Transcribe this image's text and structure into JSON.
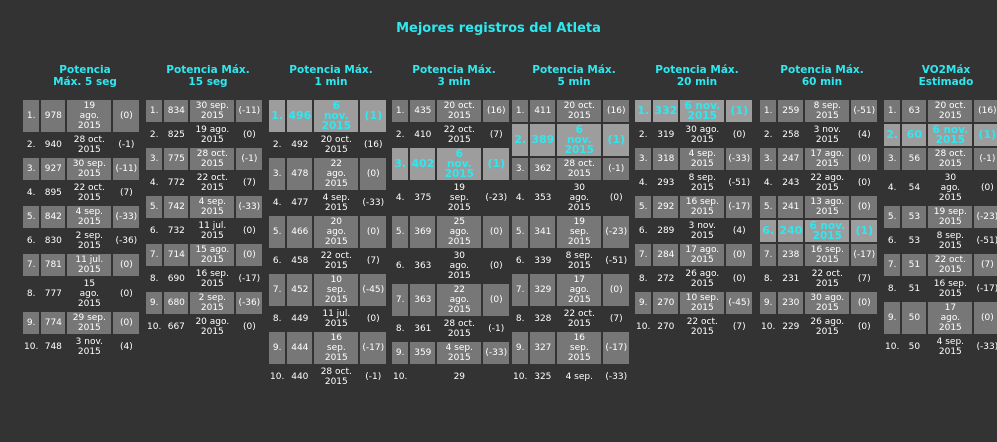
{
  "page_title": "Mejores registros del Atleta",
  "columns": [
    {
      "title": [
        "Potencia",
        "Máx. 5 seg"
      ],
      "rows": [
        {
          "rank": "1.",
          "value": "978",
          "date": [
            "19",
            "ago.",
            "2015"
          ],
          "diff": "(0)",
          "style": "shade"
        },
        {
          "rank": "2.",
          "value": "940",
          "date": [
            "28 oct.",
            "2015"
          ],
          "diff": "(-1)",
          "style": ""
        },
        {
          "rank": "3.",
          "value": "927",
          "date": [
            "30 sep.",
            "2015"
          ],
          "diff": "(-11)",
          "style": "shade"
        },
        {
          "rank": "4.",
          "value": "895",
          "date": [
            "22 oct.",
            "2015"
          ],
          "diff": "(7)",
          "style": ""
        },
        {
          "rank": "5.",
          "value": "842",
          "date": [
            "4 sep.",
            "2015"
          ],
          "diff": "(-33)",
          "style": "shade"
        },
        {
          "rank": "6.",
          "value": "830",
          "date": [
            "2 sep.",
            "2015"
          ],
          "diff": "(-36)",
          "style": ""
        },
        {
          "rank": "7.",
          "value": "781",
          "date": [
            "11 jul.",
            "2015"
          ],
          "diff": "(0)",
          "style": "shade"
        },
        {
          "rank": "8.",
          "value": "777",
          "date": [
            "15",
            "ago.",
            "2015"
          ],
          "diff": "(0)",
          "style": ""
        },
        {
          "rank": "9.",
          "value": "774",
          "date": [
            "29 sep.",
            "2015"
          ],
          "diff": "(0)",
          "style": "shade"
        },
        {
          "rank": "10.",
          "value": "748",
          "date": [
            "3 nov.",
            "2015"
          ],
          "diff": "(4)",
          "style": ""
        }
      ]
    },
    {
      "title": [
        "Potencia Máx.",
        "15 seg"
      ],
      "rows": [
        {
          "rank": "1.",
          "value": "834",
          "date": [
            "30 sep.",
            "2015"
          ],
          "diff": "(-11)",
          "style": "shade"
        },
        {
          "rank": "2.",
          "value": "825",
          "date": [
            "19 ago.",
            "2015"
          ],
          "diff": "(0)",
          "style": ""
        },
        {
          "rank": "3.",
          "value": "775",
          "date": [
            "28 oct.",
            "2015"
          ],
          "diff": "(-1)",
          "style": "shade"
        },
        {
          "rank": "4.",
          "value": "772",
          "date": [
            "22 oct.",
            "2015"
          ],
          "diff": "(7)",
          "style": ""
        },
        {
          "rank": "5.",
          "value": "742",
          "date": [
            "4 sep.",
            "2015"
          ],
          "diff": "(-33)",
          "style": "shade"
        },
        {
          "rank": "6.",
          "value": "732",
          "date": [
            "11 jul.",
            "2015"
          ],
          "diff": "(0)",
          "style": ""
        },
        {
          "rank": "7.",
          "value": "714",
          "date": [
            "15 ago.",
            "2015"
          ],
          "diff": "(0)",
          "style": "shade"
        },
        {
          "rank": "8.",
          "value": "690",
          "date": [
            "16 sep.",
            "2015"
          ],
          "diff": "(-17)",
          "style": ""
        },
        {
          "rank": "9.",
          "value": "680",
          "date": [
            "2 sep.",
            "2015"
          ],
          "diff": "(-36)",
          "style": "shade"
        },
        {
          "rank": "10.",
          "value": "667",
          "date": [
            "20 ago.",
            "2015"
          ],
          "diff": "(0)",
          "style": ""
        }
      ]
    },
    {
      "title": [
        "Potencia Máx.",
        "1 min"
      ],
      "rows": [
        {
          "rank": "1.",
          "value": "496",
          "date": [
            "6",
            "nov.",
            "2015"
          ],
          "diff": "(1)",
          "style": "hl"
        },
        {
          "rank": "2.",
          "value": "492",
          "date": [
            "20 oct.",
            "2015"
          ],
          "diff": "(16)",
          "style": ""
        },
        {
          "rank": "3.",
          "value": "478",
          "date": [
            "22",
            "ago.",
            "2015"
          ],
          "diff": "(0)",
          "style": "shade"
        },
        {
          "rank": "4.",
          "value": "477",
          "date": [
            "4 sep.",
            "2015"
          ],
          "diff": "(-33)",
          "style": ""
        },
        {
          "rank": "5.",
          "value": "466",
          "date": [
            "20",
            "ago.",
            "2015"
          ],
          "diff": "(0)",
          "style": "shade"
        },
        {
          "rank": "6.",
          "value": "458",
          "date": [
            "22 oct.",
            "2015"
          ],
          "diff": "(7)",
          "style": ""
        },
        {
          "rank": "7.",
          "value": "452",
          "date": [
            "10",
            "sep.",
            "2015"
          ],
          "diff": "(-45)",
          "style": "shade"
        },
        {
          "rank": "8.",
          "value": "449",
          "date": [
            "11 jul.",
            "2015"
          ],
          "diff": "(0)",
          "style": ""
        },
        {
          "rank": "9.",
          "value": "444",
          "date": [
            "16",
            "sep.",
            "2015"
          ],
          "diff": "(-17)",
          "style": "shade"
        },
        {
          "rank": "10.",
          "value": "440",
          "date": [
            "28 oct.",
            "2015"
          ],
          "diff": "(-1)",
          "style": ""
        }
      ]
    },
    {
      "title": [
        "Potencia Máx.",
        "3 min"
      ],
      "rows": [
        {
          "rank": "1.",
          "value": "435",
          "date": [
            "20 oct.",
            "2015"
          ],
          "diff": "(16)",
          "style": "shade"
        },
        {
          "rank": "2.",
          "value": "410",
          "date": [
            "22 oct.",
            "2015"
          ],
          "diff": "(7)",
          "style": ""
        },
        {
          "rank": "3.",
          "value": "402",
          "date": [
            "6",
            "nov.",
            "2015"
          ],
          "diff": "(1)",
          "style": "hl"
        },
        {
          "rank": "4.",
          "value": "375",
          "date": [
            "19",
            "sep.",
            "2015"
          ],
          "diff": "(-23)",
          "style": ""
        },
        {
          "rank": "5.",
          "value": "369",
          "date": [
            "25",
            "ago.",
            "2015"
          ],
          "diff": "(0)",
          "style": "shade"
        },
        {
          "rank": "6.",
          "value": "363",
          "date": [
            "30",
            "ago.",
            "2015"
          ],
          "diff": "(0)",
          "style": ""
        },
        {
          "rank": "7.",
          "value": "363",
          "date": [
            "22",
            "ago.",
            "2015"
          ],
          "diff": "(0)",
          "style": "shade"
        },
        {
          "rank": "8.",
          "value": "361",
          "date": [
            "28 oct.",
            "2015"
          ],
          "diff": "(-1)",
          "style": ""
        },
        {
          "rank": "9.",
          "value": "359",
          "date": [
            "4 sep.",
            "2015"
          ],
          "diff": "(-33)",
          "style": "shade"
        },
        {
          "rank": "10.",
          "value": "",
          "date": [
            "29"
          ],
          "diff": "",
          "style": ""
        }
      ]
    },
    {
      "title": [
        "Potencia Máx.",
        "5 min"
      ],
      "rows": [
        {
          "rank": "1.",
          "value": "411",
          "date": [
            "20 oct.",
            "2015"
          ],
          "diff": "(16)",
          "style": "shade"
        },
        {
          "rank": "2.",
          "value": "389",
          "date": [
            "6",
            "nov.",
            "2015"
          ],
          "diff": "(1)",
          "style": "hl"
        },
        {
          "rank": "3.",
          "value": "362",
          "date": [
            "28 oct.",
            "2015"
          ],
          "diff": "(-1)",
          "style": "shade"
        },
        {
          "rank": "4.",
          "value": "353",
          "date": [
            "30",
            "ago.",
            "2015"
          ],
          "diff": "(0)",
          "style": ""
        },
        {
          "rank": "5.",
          "value": "341",
          "date": [
            "19",
            "sep.",
            "2015"
          ],
          "diff": "(-23)",
          "style": "shade"
        },
        {
          "rank": "6.",
          "value": "339",
          "date": [
            "8 sep.",
            "2015"
          ],
          "diff": "(-51)",
          "style": ""
        },
        {
          "rank": "7.",
          "value": "329",
          "date": [
            "17",
            "ago.",
            "2015"
          ],
          "diff": "(0)",
          "style": "shade"
        },
        {
          "rank": "8.",
          "value": "328",
          "date": [
            "22 oct.",
            "2015"
          ],
          "diff": "(7)",
          "style": ""
        },
        {
          "rank": "9.",
          "value": "327",
          "date": [
            "16",
            "sep.",
            "2015"
          ],
          "diff": "(-17)",
          "style": "shade"
        },
        {
          "rank": "10.",
          "value": "325",
          "date": [
            "4 sep."
          ],
          "diff": "(-33)",
          "style": ""
        }
      ]
    },
    {
      "title": [
        "Potencia Máx.",
        "20 min"
      ],
      "rows": [
        {
          "rank": "1.",
          "value": "332",
          "date": [
            "6 nov.",
            "2015"
          ],
          "diff": "(1)",
          "style": "hl"
        },
        {
          "rank": "2.",
          "value": "319",
          "date": [
            "30 ago.",
            "2015"
          ],
          "diff": "(0)",
          "style": ""
        },
        {
          "rank": "3.",
          "value": "318",
          "date": [
            "4 sep.",
            "2015"
          ],
          "diff": "(-33)",
          "style": "shade"
        },
        {
          "rank": "4.",
          "value": "293",
          "date": [
            "8 sep.",
            "2015"
          ],
          "diff": "(-51)",
          "style": ""
        },
        {
          "rank": "5.",
          "value": "292",
          "date": [
            "16 sep.",
            "2015"
          ],
          "diff": "(-17)",
          "style": "shade"
        },
        {
          "rank": "6.",
          "value": "289",
          "date": [
            "3 nov.",
            "2015"
          ],
          "diff": "(4)",
          "style": ""
        },
        {
          "rank": "7.",
          "value": "284",
          "date": [
            "17 ago.",
            "2015"
          ],
          "diff": "(0)",
          "style": "shade"
        },
        {
          "rank": "8.",
          "value": "272",
          "date": [
            "26 ago.",
            "2015"
          ],
          "diff": "(0)",
          "style": ""
        },
        {
          "rank": "9.",
          "value": "270",
          "date": [
            "10 sep.",
            "2015"
          ],
          "diff": "(-45)",
          "style": "shade"
        },
        {
          "rank": "10.",
          "value": "270",
          "date": [
            "22 oct.",
            "2015"
          ],
          "diff": "(7)",
          "style": ""
        }
      ]
    },
    {
      "title": [
        "Potencia Máx.",
        "60 min"
      ],
      "rows": [
        {
          "rank": "1.",
          "value": "259",
          "date": [
            "8 sep.",
            "2015"
          ],
          "diff": "(-51)",
          "style": "shade"
        },
        {
          "rank": "2.",
          "value": "258",
          "date": [
            "3 nov.",
            "2015"
          ],
          "diff": "(4)",
          "style": ""
        },
        {
          "rank": "3.",
          "value": "247",
          "date": [
            "17 ago.",
            "2015"
          ],
          "diff": "(0)",
          "style": "shade"
        },
        {
          "rank": "4.",
          "value": "243",
          "date": [
            "22 ago.",
            "2015"
          ],
          "diff": "(0)",
          "style": ""
        },
        {
          "rank": "5.",
          "value": "241",
          "date": [
            "13 ago.",
            "2015"
          ],
          "diff": "(0)",
          "style": "shade"
        },
        {
          "rank": "6.",
          "value": "240",
          "date": [
            "6 nov.",
            "2015"
          ],
          "diff": "(1)",
          "style": "hl"
        },
        {
          "rank": "7.",
          "value": "238",
          "date": [
            "16 sep.",
            "2015"
          ],
          "diff": "(-17)",
          "style": "shade"
        },
        {
          "rank": "8.",
          "value": "231",
          "date": [
            "22 oct.",
            "2015"
          ],
          "diff": "(7)",
          "style": ""
        },
        {
          "rank": "9.",
          "value": "230",
          "date": [
            "30 ago.",
            "2015"
          ],
          "diff": "(0)",
          "style": "shade"
        },
        {
          "rank": "10.",
          "value": "229",
          "date": [
            "26 ago.",
            "2015"
          ],
          "diff": "(0)",
          "style": ""
        }
      ]
    },
    {
      "title": [
        "VO2Máx",
        "Estimado"
      ],
      "rows": [
        {
          "rank": "1.",
          "value": "63",
          "date": [
            "20 oct.",
            "2015"
          ],
          "diff": "(16)",
          "style": "shade"
        },
        {
          "rank": "2.",
          "value": "60",
          "date": [
            "6 nov.",
            "2015"
          ],
          "diff": "(1)",
          "style": "hl"
        },
        {
          "rank": "3.",
          "value": "56",
          "date": [
            "28 oct.",
            "2015"
          ],
          "diff": "(-1)",
          "style": "shade"
        },
        {
          "rank": "4.",
          "value": "54",
          "date": [
            "30",
            "ago.",
            "2015"
          ],
          "diff": "(0)",
          "style": ""
        },
        {
          "rank": "5.",
          "value": "53",
          "date": [
            "19 sep.",
            "2015"
          ],
          "diff": "(-23)",
          "style": "shade"
        },
        {
          "rank": "6.",
          "value": "53",
          "date": [
            "8 sep.",
            "2015"
          ],
          "diff": "(-51)",
          "style": ""
        },
        {
          "rank": "7.",
          "value": "51",
          "date": [
            "22 oct.",
            "2015"
          ],
          "diff": "(7)",
          "style": "shade"
        },
        {
          "rank": "8.",
          "value": "51",
          "date": [
            "16 sep.",
            "2015"
          ],
          "diff": "(-17)",
          "style": ""
        },
        {
          "rank": "9.",
          "value": "50",
          "date": [
            "17",
            "ago.",
            "2015"
          ],
          "diff": "(0)",
          "style": "shade"
        },
        {
          "rank": "10.",
          "value": "50",
          "date": [
            "4 sep.",
            "2015"
          ],
          "diff": "(-33)",
          "style": ""
        }
      ]
    }
  ]
}
